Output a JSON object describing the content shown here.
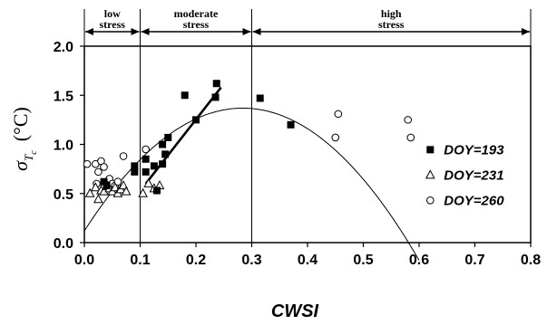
{
  "chart_data": {
    "type": "scatter",
    "xlabel": "CWSI",
    "ylabel": {
      "symbol": "σ",
      "sub": "T",
      "subsub": "c",
      "unit": "(°C)"
    },
    "xlim": [
      0,
      0.8
    ],
    "ylim": [
      0,
      2.0
    ],
    "x_ticks": [
      "0.0",
      "0.1",
      "0.2",
      "0.3",
      "0.4",
      "0.5",
      "0.6",
      "0.7",
      "0.8"
    ],
    "y_ticks": [
      "0.0",
      "0.5",
      "1.0",
      "1.5",
      "2.0"
    ],
    "region_dividers": [
      0.1,
      0.3
    ],
    "regions": [
      {
        "lines": [
          "low",
          "stress"
        ],
        "from": 0,
        "to": 0.1
      },
      {
        "lines": [
          "moderate",
          "stress"
        ],
        "from": 0.1,
        "to": 0.3
      },
      {
        "lines": [
          "high",
          "stress"
        ],
        "from": 0.3,
        "to": 0.8
      }
    ],
    "series": [
      {
        "name": "DOY=193",
        "marker": "filled-square",
        "points": [
          [
            0.035,
            0.62
          ],
          [
            0.04,
            0.58
          ],
          [
            0.09,
            0.72
          ],
          [
            0.09,
            0.78
          ],
          [
            0.11,
            0.72
          ],
          [
            0.11,
            0.85
          ],
          [
            0.125,
            0.78
          ],
          [
            0.13,
            0.53
          ],
          [
            0.14,
            0.8
          ],
          [
            0.14,
            1.0
          ],
          [
            0.145,
            0.9
          ],
          [
            0.15,
            1.07
          ],
          [
            0.18,
            1.5
          ],
          [
            0.2,
            1.25
          ],
          [
            0.235,
            1.48
          ],
          [
            0.237,
            1.62
          ],
          [
            0.315,
            1.47
          ],
          [
            0.37,
            1.2
          ]
        ]
      },
      {
        "name": "DOY=231",
        "marker": "open-triangle",
        "points": [
          [
            0.01,
            0.5
          ],
          [
            0.02,
            0.56
          ],
          [
            0.025,
            0.44
          ],
          [
            0.03,
            0.53
          ],
          [
            0.035,
            0.52
          ],
          [
            0.04,
            0.57
          ],
          [
            0.045,
            0.55
          ],
          [
            0.05,
            0.52
          ],
          [
            0.055,
            0.56
          ],
          [
            0.06,
            0.5
          ],
          [
            0.065,
            0.54
          ],
          [
            0.07,
            0.58
          ],
          [
            0.075,
            0.52
          ],
          [
            0.105,
            0.5
          ],
          [
            0.115,
            0.6
          ],
          [
            0.125,
            0.55
          ],
          [
            0.135,
            0.58
          ]
        ]
      },
      {
        "name": "DOY=260",
        "marker": "open-circle",
        "points": [
          [
            0.005,
            0.8
          ],
          [
            0.02,
            0.8
          ],
          [
            0.022,
            0.6
          ],
          [
            0.025,
            0.72
          ],
          [
            0.03,
            0.83
          ],
          [
            0.035,
            0.77
          ],
          [
            0.045,
            0.65
          ],
          [
            0.05,
            0.6
          ],
          [
            0.055,
            0.58
          ],
          [
            0.06,
            0.62
          ],
          [
            0.07,
            0.88
          ],
          [
            0.11,
            0.95
          ],
          [
            0.45,
            1.07
          ],
          [
            0.455,
            1.31
          ],
          [
            0.58,
            1.25
          ],
          [
            0.585,
            1.07
          ]
        ]
      }
    ],
    "curve": {
      "description": "fitted curve",
      "a": 0.12,
      "b": 8.8,
      "c": -15.5,
      "x_range": [
        0.0,
        0.6
      ]
    },
    "regression_line": {
      "from": [
        0.11,
        0.6
      ],
      "to": [
        0.245,
        1.58
      ]
    },
    "legend_position": "lower-right"
  }
}
